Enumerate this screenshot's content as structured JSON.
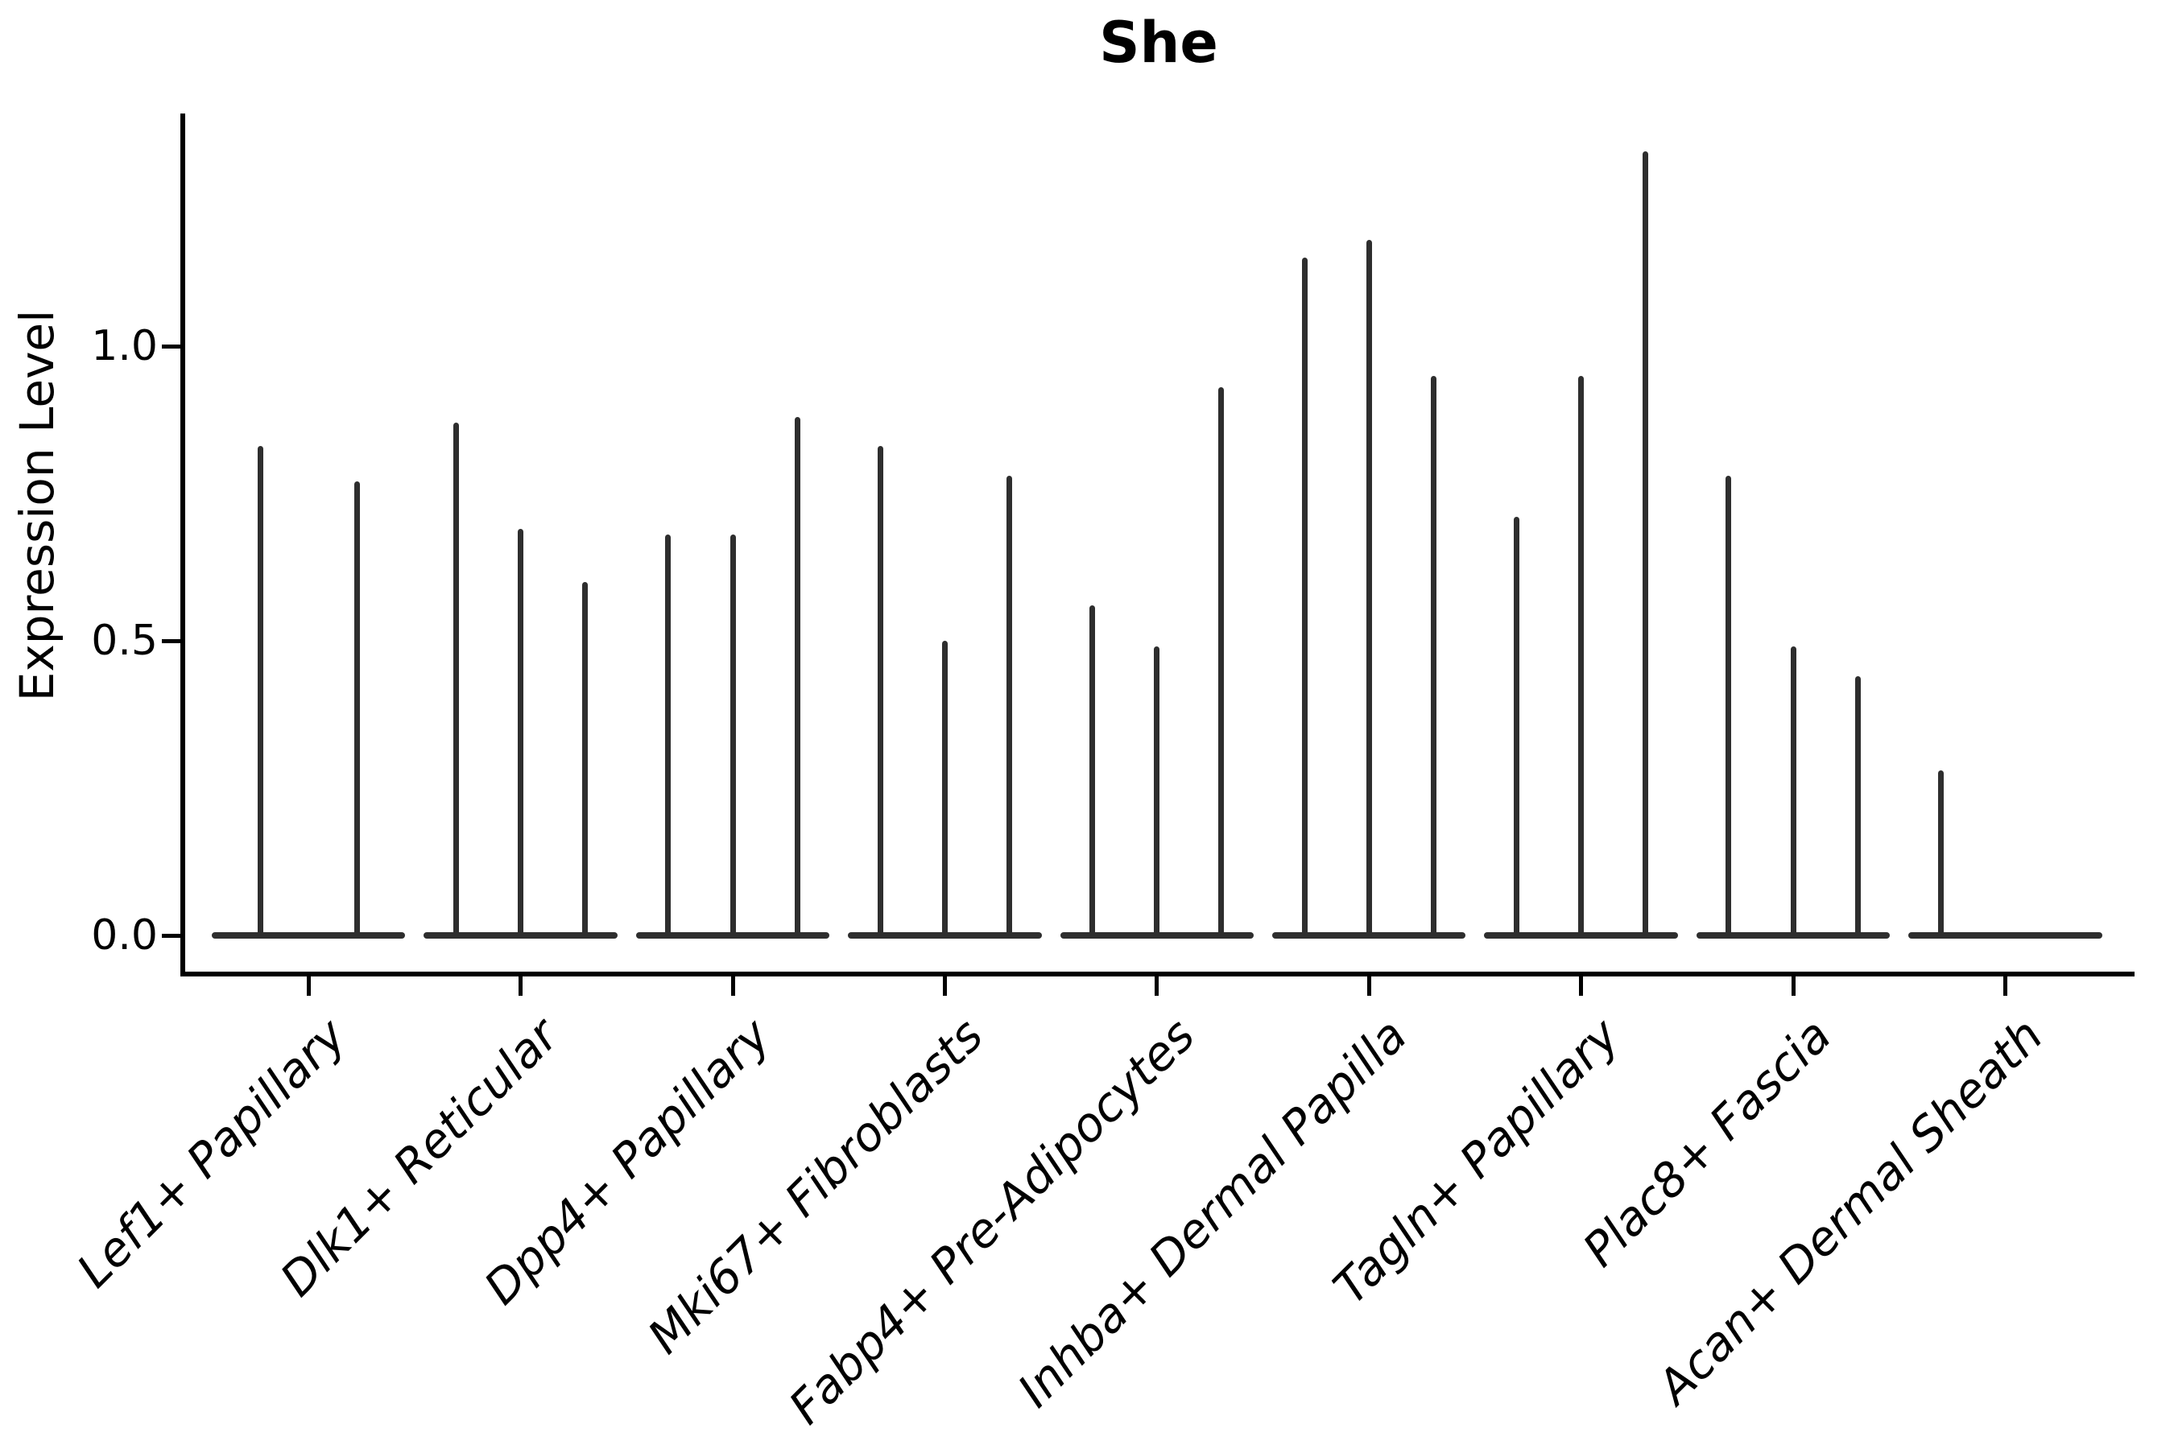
{
  "title": "She",
  "axes": {
    "ylabel": "Expression Level",
    "ytick_labels": [
      "0.0",
      "0.5",
      "1.0"
    ]
  },
  "style": {
    "violin_color": "#2e2e2e",
    "spine_color": "#000000",
    "text_color": "#000000"
  },
  "chart_data": {
    "type": "violin",
    "title": "She",
    "xlabel": "",
    "ylabel": "Expression Level",
    "ylim": [
      -0.07,
      1.4
    ],
    "ytick_values": [
      0.0,
      0.5,
      1.0
    ],
    "grid": false,
    "legend": "none",
    "shape_note": "needle-thin violins: distributions concentrated at 0 with a thin spike to the max expression value; flat base bar spans each category slot at y=0",
    "categories": [
      "Lef1+ Papillary",
      "Dlk1+ Reticular",
      "Dpp4+ Papillary",
      "Mki67+ Fibroblasts",
      "Fabp4+ Pre-Adipocytes",
      "Inhba+ Dermal Papilla",
      "Tagln+ Papillary",
      "Plac8+ Fascia",
      "Acan+ Dermal Sheath"
    ],
    "violins": [
      {
        "category": "Lef1+ Papillary",
        "spike_maxima": [
          0.83,
          0.77
        ]
      },
      {
        "category": "Dlk1+ Reticular",
        "spike_maxima": [
          0.87,
          0.69,
          0.6
        ]
      },
      {
        "category": "Dpp4+ Papillary",
        "spike_maxima": [
          0.68,
          0.68,
          0.88
        ]
      },
      {
        "category": "Mki67+ Fibroblasts",
        "spike_maxima": [
          0.83,
          0.5,
          0.78
        ]
      },
      {
        "category": "Fabp4+ Pre-Adipocytes",
        "spike_maxima": [
          0.56,
          0.49,
          0.93
        ]
      },
      {
        "category": "Inhba+ Dermal Papilla",
        "spike_maxima": [
          1.15,
          1.18,
          0.95
        ]
      },
      {
        "category": "Tagln+ Papillary",
        "spike_maxima": [
          0.71,
          0.95,
          1.33
        ]
      },
      {
        "category": "Plac8+ Fascia",
        "spike_maxima": [
          0.78,
          0.49,
          0.44
        ]
      },
      {
        "category": "Acan+ Dermal Sheath",
        "spike_maxima": [
          0.28,
          0.0,
          0.0
        ]
      }
    ]
  }
}
